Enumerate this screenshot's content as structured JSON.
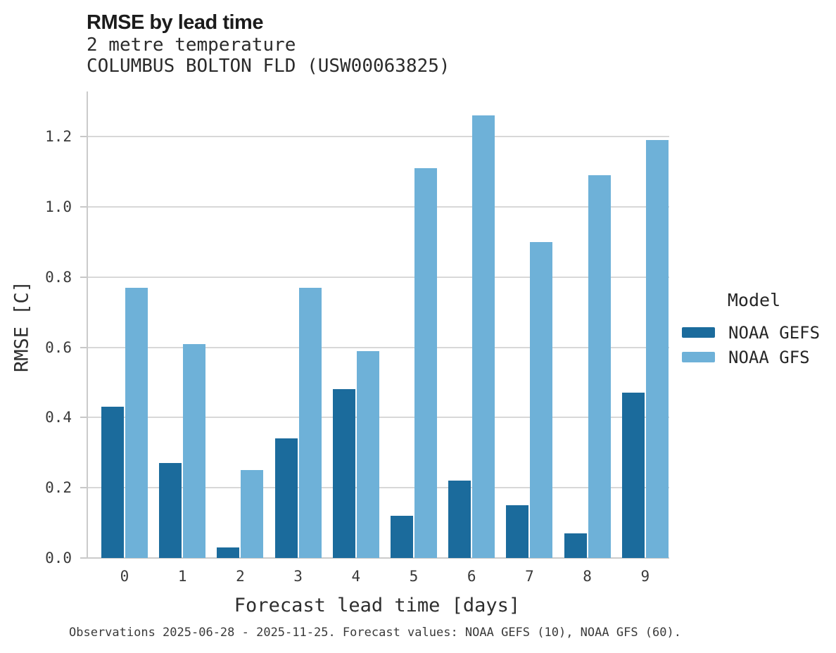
{
  "header": {
    "title": "RMSE by lead time",
    "subtitle_line1": "2 metre temperature",
    "subtitle_line2": "COLUMBUS BOLTON FLD (USW00063825)"
  },
  "chart_data": {
    "type": "bar",
    "title": "RMSE by lead time",
    "subtitle": "2 metre temperature — COLUMBUS BOLTON FLD (USW00063825)",
    "xlabel": "Forecast lead time [days]",
    "ylabel": "RMSE [C]",
    "categories": [
      "0",
      "1",
      "2",
      "3",
      "4",
      "5",
      "6",
      "7",
      "8",
      "9"
    ],
    "series": [
      {
        "name": "NOAA GEFS",
        "color": "#1b6b9c",
        "values": [
          0.43,
          0.27,
          0.03,
          0.34,
          0.48,
          0.12,
          0.22,
          0.15,
          0.07,
          0.47
        ]
      },
      {
        "name": "NOAA GFS",
        "color": "#6eb1d8",
        "values": [
          0.77,
          0.61,
          0.25,
          0.77,
          0.59,
          1.11,
          1.26,
          0.9,
          1.09,
          1.19
        ]
      }
    ],
    "y_ticks": [
      "0.0",
      "0.2",
      "0.4",
      "0.6",
      "0.8",
      "1.0",
      "1.2"
    ],
    "ylim": [
      0,
      1.33
    ],
    "grid": "horizontal",
    "legend_title": "Model",
    "legend_position": "right"
  },
  "caption": "Observations 2025-06-28 - 2025-11-25. Forecast values: NOAA GEFS (10), NOAA GFS (60)."
}
